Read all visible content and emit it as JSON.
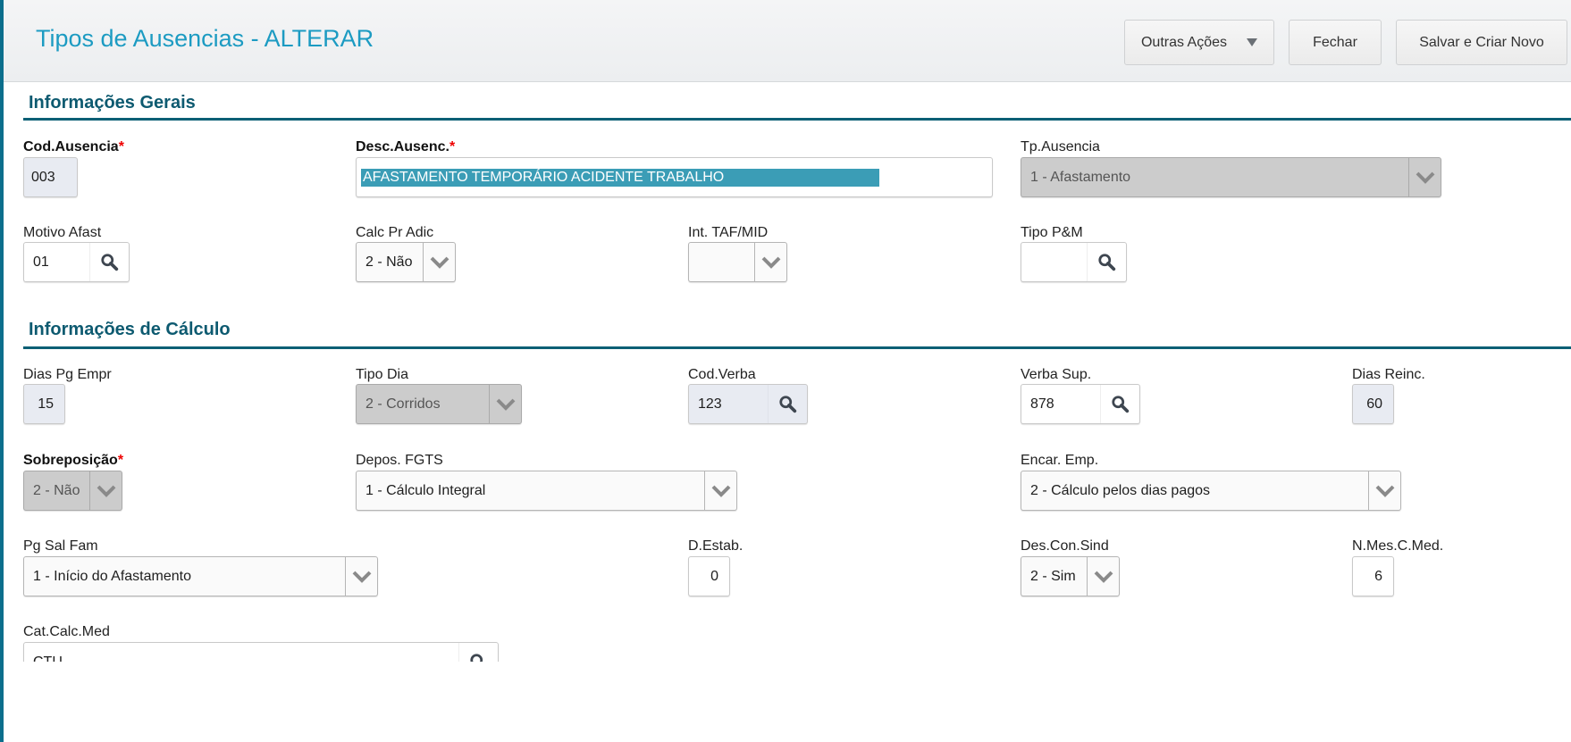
{
  "header": {
    "title": "Tipos de Ausencias - ALTERAR",
    "buttons": {
      "more": "Outras Ações",
      "close": "Fechar",
      "save_new": "Salvar e Criar Novo"
    }
  },
  "sections": {
    "general": "Informações Gerais",
    "calc": "Informações de Cálculo"
  },
  "required_mark": "*",
  "fields": {
    "cod_ausencia": {
      "label": "Cod.Ausencia",
      "value": "003"
    },
    "desc_ausenc": {
      "label": "Desc.Ausenc.",
      "value": "AFASTAMENTO TEMPORÁRIO ACIDENTE TRABALHO"
    },
    "tp_ausencia": {
      "label": "Tp.Ausencia",
      "value": "1 - Afastamento"
    },
    "motivo_afast": {
      "label": "Motivo Afast",
      "value": "01"
    },
    "calc_pr_adic": {
      "label": "Calc Pr Adic",
      "value": "2 - Não"
    },
    "int_taf_mid": {
      "label": "Int. TAF/MID",
      "value": ""
    },
    "tipo_pm": {
      "label": "Tipo P&M",
      "value": ""
    },
    "dias_pg_empr": {
      "label": "Dias Pg Empr",
      "value": "15"
    },
    "tipo_dia": {
      "label": "Tipo Dia",
      "value": "2 - Corridos"
    },
    "cod_verba": {
      "label": "Cod.Verba",
      "value": "123"
    },
    "verba_sup": {
      "label": "Verba Sup.",
      "value": "878"
    },
    "dias_reinc": {
      "label": "Dias Reinc.",
      "value": "60"
    },
    "sobreposicao": {
      "label": "Sobreposição",
      "value": "2 - Não"
    },
    "depos_fgts": {
      "label": "Depos. FGTS",
      "value": "1 - Cálculo Integral"
    },
    "encar_emp": {
      "label": "Encar. Emp.",
      "value": "2 - Cálculo pelos dias pagos"
    },
    "pg_sal_fam": {
      "label": "Pg Sal Fam",
      "value": "1 - Início do Afastamento"
    },
    "d_estab": {
      "label": "D.Estab.",
      "value": "0"
    },
    "des_con_sind": {
      "label": "Des.Con.Sind",
      "value": "2 - Sim"
    },
    "n_mes_c_med": {
      "label": "N.Mes.C.Med.",
      "value": "6"
    },
    "cat_calc_med": {
      "label": "Cat.Calc.Med",
      "value": "CTU"
    }
  },
  "colors": {
    "accent": "#1c9bc2",
    "section": "#0d5a70",
    "required": "#ee0000",
    "selection": "#3b9db6"
  }
}
